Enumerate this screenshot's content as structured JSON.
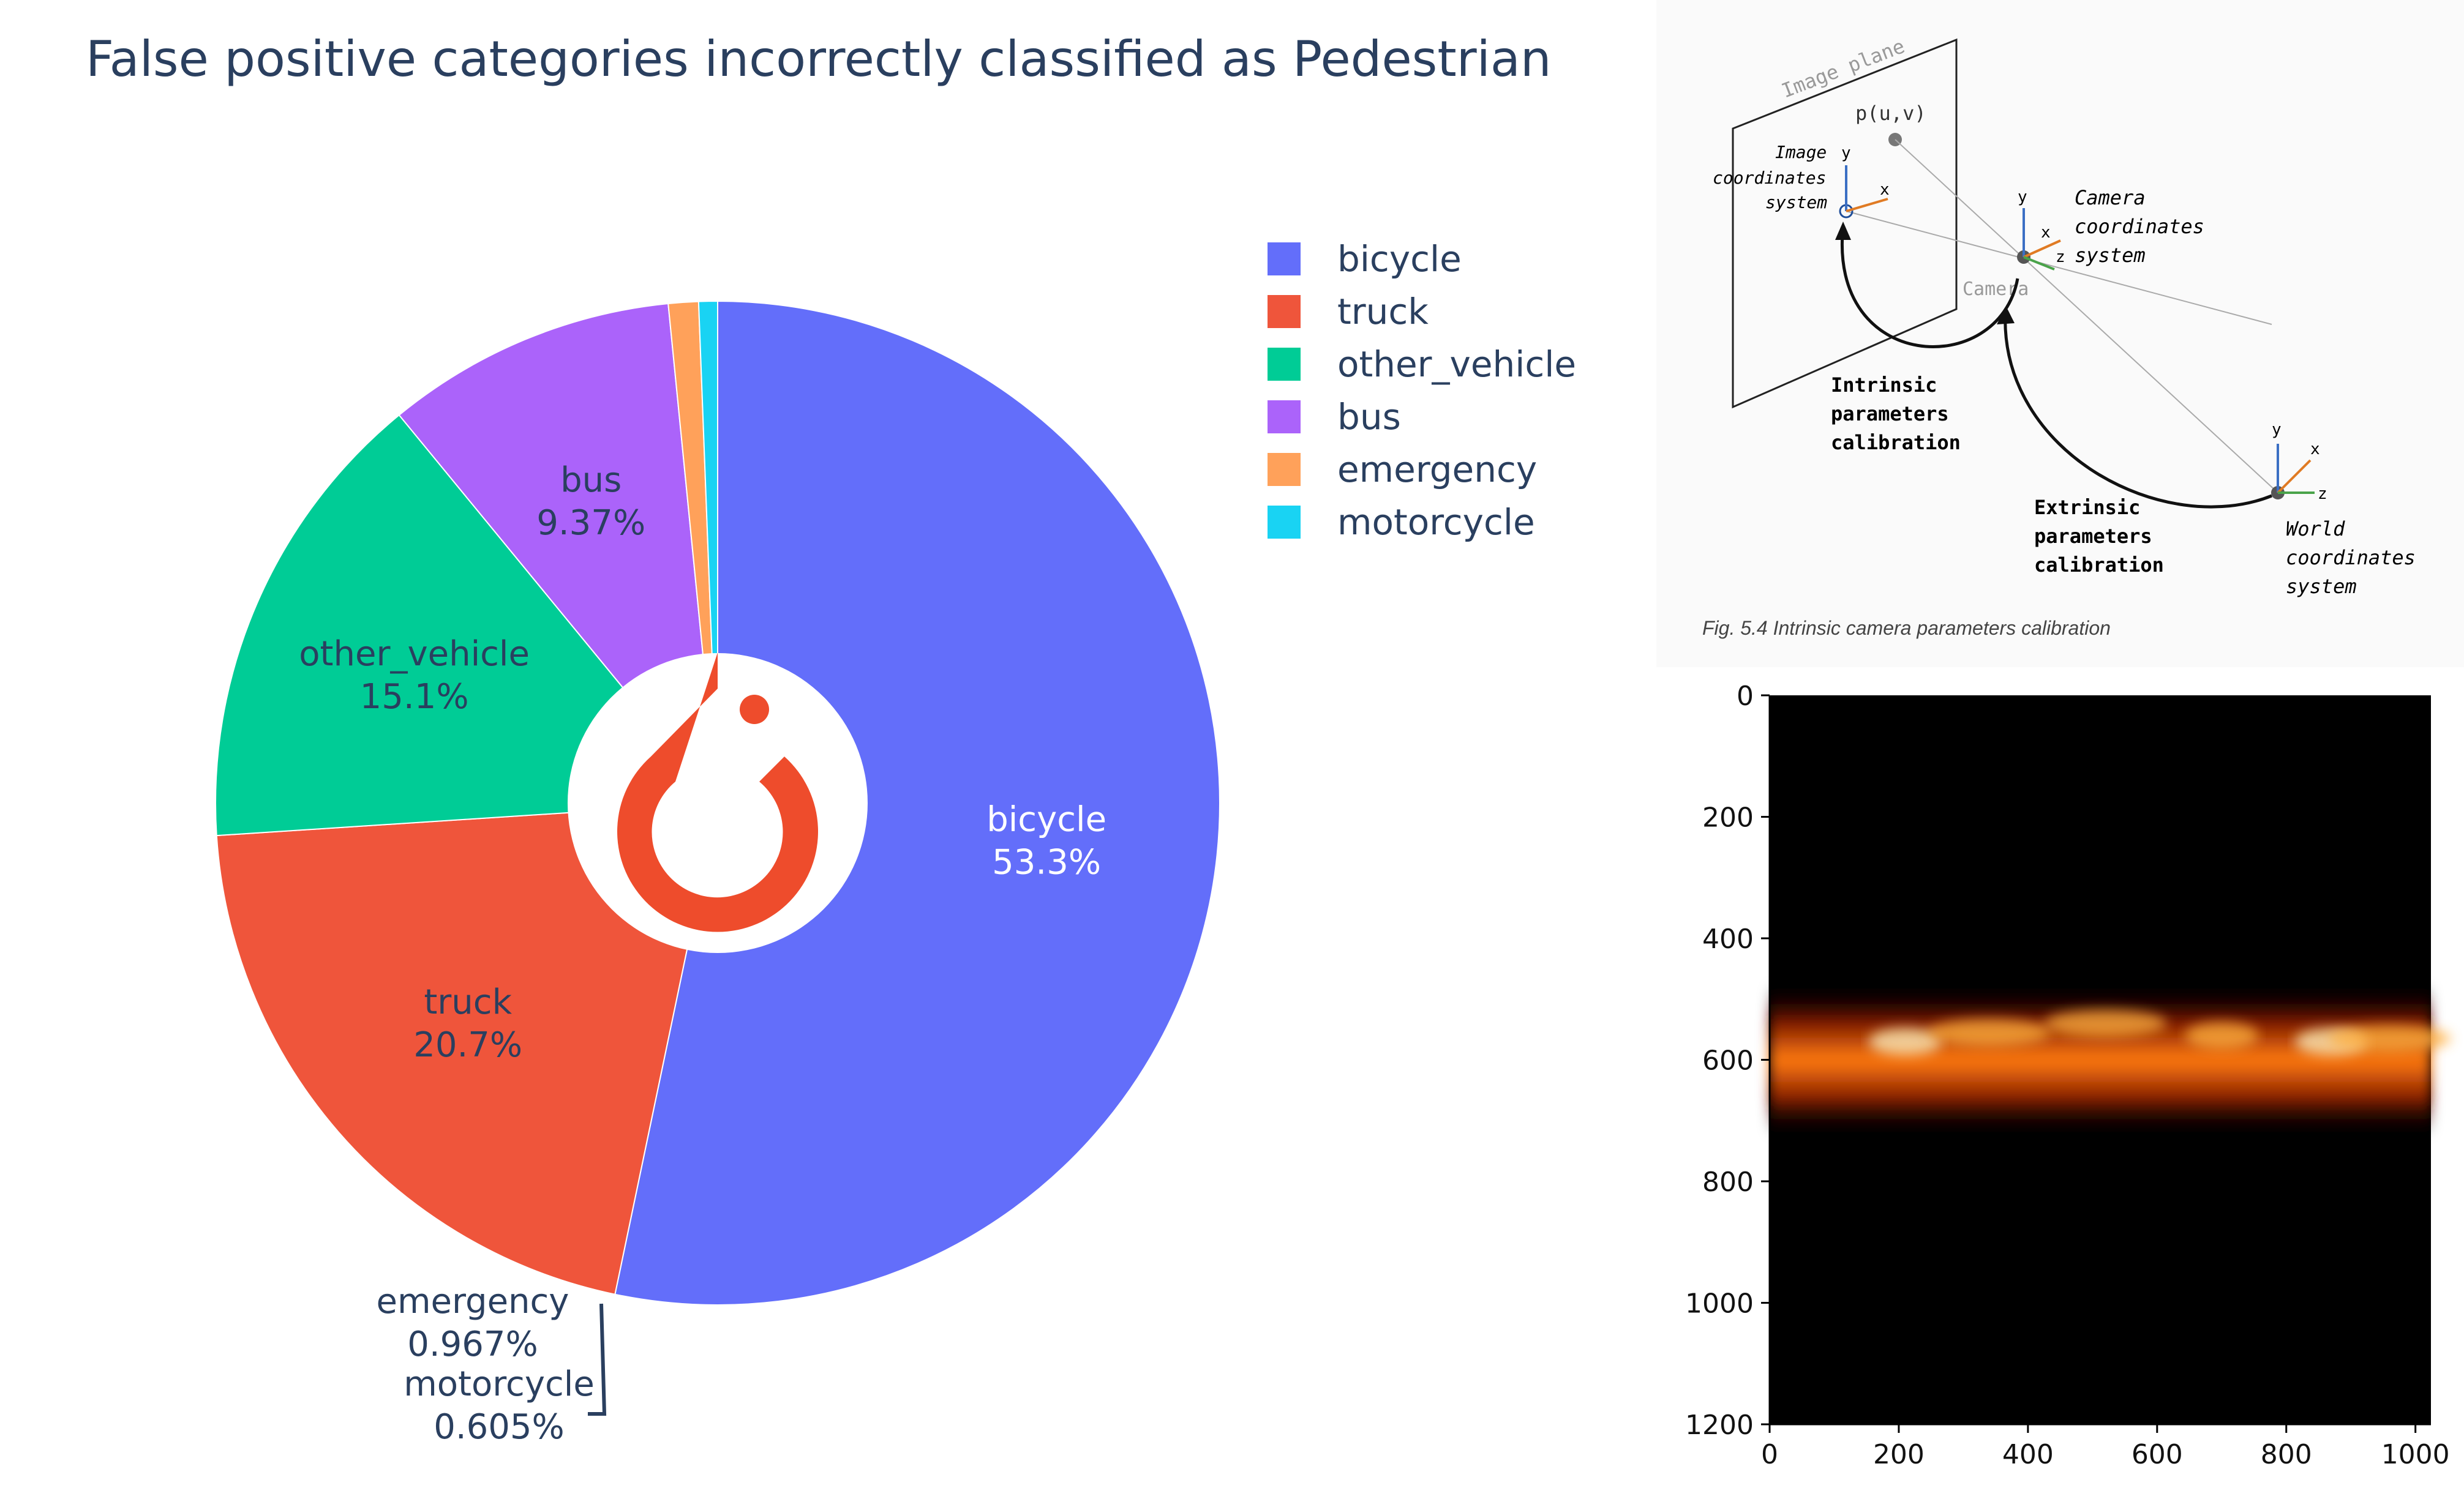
{
  "chart_data": [
    {
      "type": "pie",
      "title": "False positive categories incorrectly classified as Pedestrian",
      "hole": true,
      "legend_position": "right",
      "categories": [
        "bicycle",
        "truck",
        "other_vehicle",
        "bus",
        "emergency",
        "motorcycle"
      ],
      "values": [
        53.3,
        20.7,
        15.1,
        9.37,
        0.967,
        0.605
      ],
      "labels": [
        "53.3%",
        "20.7%",
        "15.1%",
        "9.37%",
        "0.967%",
        "0.605%"
      ],
      "colors": [
        "#636efa",
        "#ef553b",
        "#00cc96",
        "#ab63fa",
        "#ffa15a",
        "#19d3f3"
      ]
    },
    {
      "type": "heatmap",
      "colormap": "hot",
      "x_ticks": [
        "0",
        "200",
        "400",
        "600",
        "800",
        "1000"
      ],
      "y_ticks": [
        "0",
        "200",
        "400",
        "600",
        "800",
        "1000",
        "1200"
      ],
      "xlim": [
        0,
        1024
      ],
      "ylim": [
        1200,
        0
      ]
    }
  ],
  "diagram": {
    "image_plane": "Image plane",
    "point": "p(u,v)",
    "image_coords": [
      "Image",
      "coordinates",
      "system"
    ],
    "camera_coords": [
      "Camera",
      "coordinates",
      "system"
    ],
    "camera": "Camera",
    "intrinsic": [
      "Intrinsic",
      "parameters",
      "calibration"
    ],
    "extrinsic": [
      "Extrinsic",
      "parameters",
      "calibration"
    ],
    "world_coords": [
      "World",
      "coordinates",
      "system"
    ],
    "axis_x": "x",
    "axis_y": "y",
    "axis_z": "z",
    "caption": "Fig. 5.4 Intrinsic camera parameters calibration"
  },
  "logo": {
    "name": "pytorch-logo-icon",
    "color": "#ee4c2c"
  }
}
